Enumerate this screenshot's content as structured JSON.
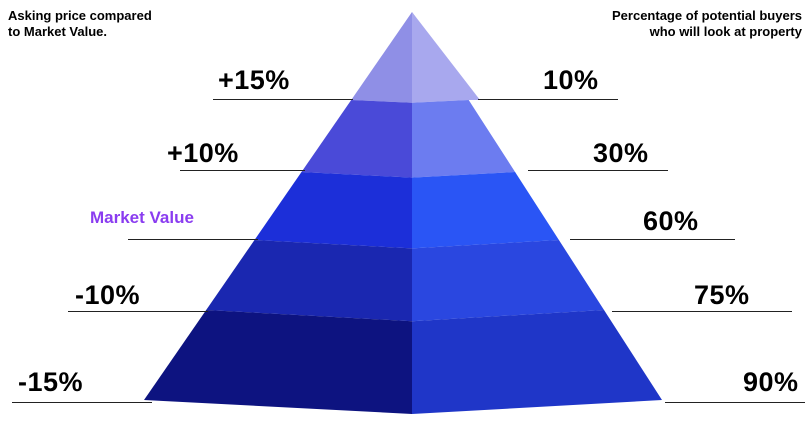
{
  "left_heading": "Asking price compared\nto Market Value.",
  "right_heading": "Percentage of potential buyers\nwho will look at property",
  "tiers": [
    {
      "price": "+15%",
      "buyers": "10%",
      "price_is_market": false
    },
    {
      "price": "+10%",
      "buyers": "30%",
      "price_is_market": false
    },
    {
      "price": "Market Value",
      "buyers": "60%",
      "price_is_market": true
    },
    {
      "price": "-10%",
      "buyers": "75%",
      "price_is_market": false
    },
    {
      "price": "-15%",
      "buyers": "90%",
      "price_is_market": false
    }
  ],
  "colors": {
    "market_value_label": "#8a3cf0",
    "tier_left": [
      "#8f8fe6",
      "#4a4ad8",
      "#1c2fd9",
      "#1a27b0",
      "#0d1380"
    ],
    "tier_right": [
      "#a8a8ee",
      "#6c7cf0",
      "#2a55f5",
      "#2a47e0",
      "#1f36c8"
    ]
  }
}
